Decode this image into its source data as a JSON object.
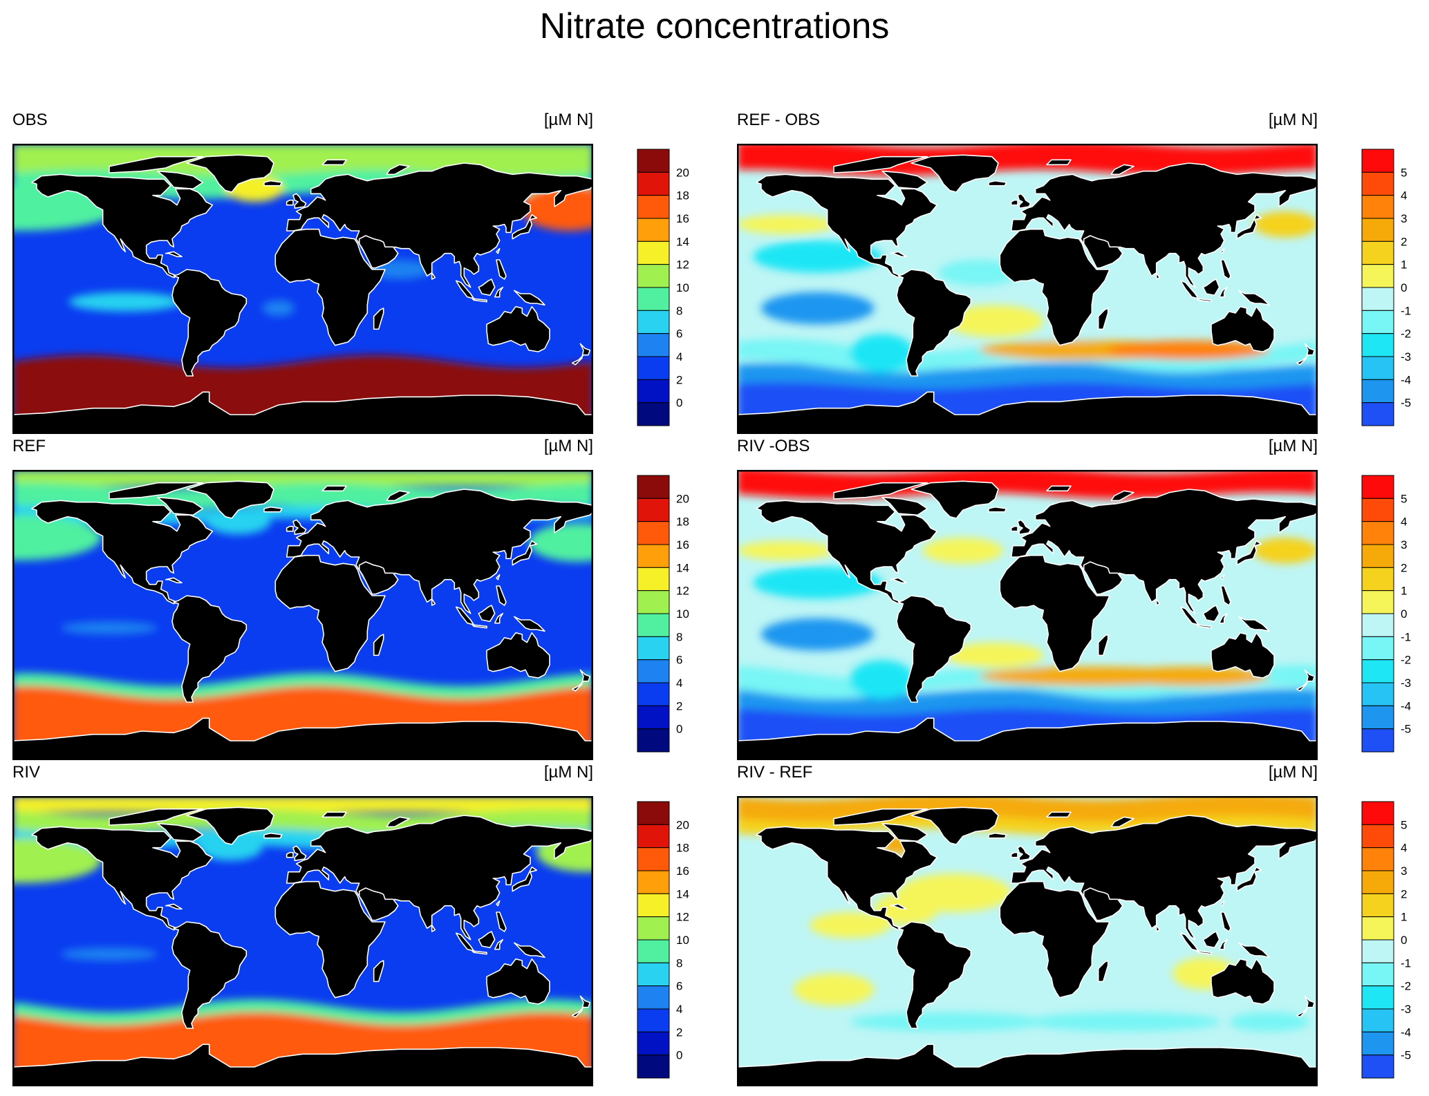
{
  "title": "Nitrate concentrations",
  "unit_label": "[µM N]",
  "colors": {
    "land": "#000000",
    "coast": "#ffffff",
    "border": "#000000",
    "abs_scale": [
      "#000a7f",
      "#0013c4",
      "#0a3cf0",
      "#1e82f0",
      "#28d2f0",
      "#50f0a0",
      "#a0f050",
      "#f5f028",
      "#ff9f0a",
      "#ff5a0a",
      "#e1140a",
      "#8b0a0a"
    ],
    "diff_scale": [
      "#1e50f5",
      "#1e96f0",
      "#28c3f5",
      "#1ee6f5",
      "#78f5f5",
      "#bef5f5",
      "#f5f55a",
      "#f5d21e",
      "#f5aa0a",
      "#ff820a",
      "#ff4b0a",
      "#ff0a0a"
    ]
  },
  "panels": [
    {
      "id": "obs",
      "title": "OBS",
      "scale": "abs",
      "pattern": "obs"
    },
    {
      "id": "ref_obs",
      "title": "REF - OBS",
      "scale": "diff",
      "pattern": "refobs"
    },
    {
      "id": "ref",
      "title": "REF",
      "scale": "abs",
      "pattern": "ref"
    },
    {
      "id": "riv_obs",
      "title": "RIV -OBS",
      "scale": "diff",
      "pattern": "rivobs"
    },
    {
      "id": "riv",
      "title": "RIV",
      "scale": "abs",
      "pattern": "riv"
    },
    {
      "id": "riv_ref",
      "title": "RIV - REF",
      "scale": "diff",
      "pattern": "rivref"
    }
  ],
  "colorbars": {
    "abs_labels": [
      "20",
      "18",
      "16",
      "14",
      "12",
      "10",
      "8",
      "6",
      "4",
      "2",
      "0"
    ],
    "diff_labels": [
      "5",
      "4",
      "3",
      "2",
      "1",
      "0",
      "-1",
      "-2",
      "-3",
      "-4",
      "-5"
    ]
  }
}
